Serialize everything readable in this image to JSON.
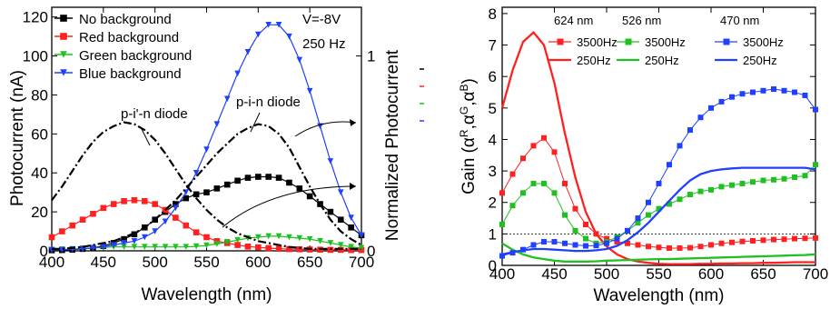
{
  "chart_data": [
    {
      "type": "line",
      "xlabel": "Wavelength (nm)",
      "ylabel": "Photocurrent (nA)",
      "y2label": "Normalized Photocurrent",
      "xlim": [
        400,
        700
      ],
      "ylim": [
        0,
        125
      ],
      "y2lim": [
        0,
        1.25
      ],
      "x_ticks": [
        "400",
        "450",
        "500",
        "550",
        "600",
        "650",
        "700"
      ],
      "y_ticks": [
        "0",
        "20",
        "40",
        "60",
        "80",
        "100",
        "120"
      ],
      "y2_ticks": [
        "0",
        "1"
      ],
      "condition_text": [
        "V=-8V",
        "250 Hz"
      ],
      "grid": false,
      "legend_position": "top-left",
      "annotations": [
        "p-i'-n diode",
        "p-i-n diode"
      ],
      "series": [
        {
          "name": "No background",
          "color": "#000000",
          "marker": "square",
          "x": [
            400,
            410,
            420,
            430,
            440,
            450,
            460,
            470,
            480,
            490,
            500,
            510,
            520,
            530,
            540,
            550,
            560,
            570,
            580,
            590,
            600,
            610,
            620,
            630,
            640,
            650,
            660,
            670,
            680,
            690,
            700
          ],
          "y": [
            0.3,
            0.4,
            0.6,
            1,
            1.5,
            2.5,
            4,
            6,
            8.5,
            12,
            16,
            20,
            24,
            27,
            29,
            30,
            32,
            34,
            36,
            37.5,
            38,
            38,
            37.5,
            35,
            32,
            28,
            24,
            20,
            16,
            12,
            8
          ]
        },
        {
          "name": "Red background",
          "color": "#ff2020",
          "marker": "square",
          "x": [
            400,
            410,
            420,
            430,
            440,
            450,
            460,
            470,
            480,
            490,
            500,
            510,
            520,
            530,
            540,
            550,
            560,
            570,
            580,
            590,
            600,
            610,
            620,
            630,
            640,
            650,
            660,
            670,
            680,
            690,
            700
          ],
          "y": [
            7,
            10,
            13,
            16,
            19,
            22,
            24,
            25.5,
            26,
            25.5,
            24,
            21,
            17,
            13,
            9.5,
            7,
            5,
            4,
            3,
            2.2,
            1.8,
            1.4,
            1.1,
            0.9,
            0.8,
            0.7,
            0.6,
            0.5,
            0.5,
            0.4,
            0.4
          ]
        },
        {
          "name": "Green background",
          "color": "#20c020",
          "marker": "triangle-down",
          "x": [
            400,
            410,
            420,
            430,
            440,
            450,
            460,
            470,
            480,
            490,
            500,
            510,
            520,
            530,
            540,
            550,
            560,
            570,
            580,
            590,
            600,
            610,
            620,
            630,
            640,
            650,
            660,
            670,
            680,
            690,
            700
          ],
          "y": [
            0.5,
            0.7,
            0.9,
            1.2,
            1.5,
            1.8,
            2,
            2,
            2,
            2,
            2,
            2,
            2,
            2,
            2.3,
            2.8,
            3.5,
            4.5,
            5.5,
            6.5,
            7,
            7.5,
            7.5,
            7,
            6.5,
            6,
            5,
            4,
            3,
            2,
            1.5
          ]
        },
        {
          "name": "Blue background",
          "color": "#2040ff",
          "marker": "triangle-down",
          "x": [
            400,
            410,
            420,
            430,
            440,
            450,
            460,
            470,
            480,
            490,
            500,
            510,
            520,
            530,
            540,
            550,
            560,
            570,
            580,
            590,
            600,
            610,
            620,
            630,
            640,
            650,
            660,
            670,
            680,
            690,
            700
          ],
          "y": [
            0.5,
            0.6,
            0.8,
            1,
            1.5,
            2,
            3,
            4,
            5,
            7,
            10,
            15,
            22,
            30,
            40,
            52,
            65,
            78,
            91,
            102,
            111,
            116,
            116,
            110,
            98,
            82,
            64,
            46,
            30,
            17,
            8
          ]
        },
        {
          "name": "p-i'-n diode",
          "color": "#000000",
          "style": "dash-dot",
          "axis": "right",
          "x": [
            400,
            410,
            420,
            430,
            440,
            450,
            460,
            470,
            480,
            490,
            500,
            510,
            520,
            530,
            540,
            550,
            560,
            570,
            580,
            590,
            600,
            610,
            620,
            630,
            640,
            650,
            660,
            670,
            680,
            690,
            700
          ],
          "y": [
            0.26,
            0.33,
            0.41,
            0.49,
            0.56,
            0.61,
            0.64,
            0.66,
            0.65,
            0.62,
            0.57,
            0.5,
            0.42,
            0.34,
            0.27,
            0.21,
            0.16,
            0.12,
            0.09,
            0.07,
            0.05,
            0.04,
            0.03,
            0.02,
            0.015,
            0.01,
            0.01,
            0.01,
            0.01,
            0.01,
            0.01
          ]
        },
        {
          "name": "p-i-n diode",
          "color": "#000000",
          "style": "dash-dot",
          "axis": "right",
          "x": [
            400,
            410,
            420,
            430,
            440,
            450,
            460,
            470,
            480,
            490,
            500,
            510,
            520,
            530,
            540,
            550,
            560,
            570,
            580,
            590,
            600,
            610,
            620,
            630,
            640,
            650,
            660,
            670,
            680,
            690,
            700
          ],
          "y": [
            0.01,
            0.01,
            0.015,
            0.02,
            0.03,
            0.04,
            0.05,
            0.07,
            0.09,
            0.12,
            0.16,
            0.21,
            0.26,
            0.32,
            0.38,
            0.44,
            0.5,
            0.55,
            0.6,
            0.63,
            0.65,
            0.64,
            0.6,
            0.53,
            0.43,
            0.33,
            0.24,
            0.16,
            0.1,
            0.06,
            0.03
          ]
        }
      ]
    },
    {
      "type": "line",
      "xlabel": "Wavelength (nm)",
      "ylabel": "Gain (α^R,α^G,α^B)",
      "ylabel_base": "Gain (",
      "ylabel_end": ")",
      "xlim": [
        400,
        700
      ],
      "ylim": [
        0,
        8.2
      ],
      "x_ticks": [
        "400",
        "450",
        "500",
        "550",
        "600",
        "650",
        "700"
      ],
      "y_ticks": [
        "0",
        "1",
        "2",
        "3",
        "4",
        "5",
        "6",
        "7",
        "8"
      ],
      "reference_line": 1,
      "grid": false,
      "legend_position": "top",
      "legend_groups": [
        {
          "header": "624 nm",
          "color": "#ff2020"
        },
        {
          "header": "526 nm",
          "color": "#20c020"
        },
        {
          "header": "470 nm",
          "color": "#2040ff"
        }
      ],
      "series": [
        {
          "name": "3500Hz",
          "group": "624 nm",
          "color": "#ff2020",
          "marker": "square",
          "x": [
            400,
            410,
            420,
            430,
            440,
            450,
            460,
            470,
            480,
            490,
            500,
            510,
            520,
            530,
            540,
            550,
            560,
            570,
            580,
            590,
            600,
            610,
            620,
            630,
            640,
            650,
            660,
            670,
            680,
            690,
            700
          ],
          "y": [
            2.3,
            2.9,
            3.4,
            3.8,
            4.05,
            3.6,
            2.6,
            1.8,
            1.3,
            1,
            0.85,
            0.75,
            0.7,
            0.65,
            0.6,
            0.57,
            0.55,
            0.55,
            0.56,
            0.6,
            0.65,
            0.7,
            0.73,
            0.76,
            0.78,
            0.8,
            0.82,
            0.83,
            0.85,
            0.86,
            0.87
          ]
        },
        {
          "name": "250Hz",
          "group": "624 nm",
          "color": "#ff2020",
          "marker": "none",
          "x": [
            400,
            410,
            420,
            430,
            440,
            450,
            460,
            470,
            480,
            490,
            500,
            510,
            520,
            530,
            540,
            550,
            560,
            570,
            580,
            590,
            600,
            610,
            620,
            630,
            640,
            650,
            660,
            670,
            680,
            690,
            700
          ],
          "y": [
            5,
            6.2,
            7.1,
            7.4,
            7,
            5.8,
            4.2,
            2.8,
            1.7,
            1,
            0.6,
            0.35,
            0.2,
            0.12,
            0.08,
            0.05,
            0.04,
            0.04,
            0.04,
            0.05,
            0.05,
            0.06,
            0.06,
            0.07,
            0.07,
            0.08,
            0.08,
            0.09,
            0.1,
            0.1,
            0.1
          ]
        },
        {
          "name": "3500Hz",
          "group": "526 nm",
          "color": "#20c020",
          "marker": "square",
          "x": [
            400,
            410,
            420,
            430,
            440,
            450,
            460,
            470,
            480,
            490,
            500,
            510,
            520,
            530,
            540,
            550,
            560,
            570,
            580,
            590,
            600,
            610,
            620,
            630,
            640,
            650,
            660,
            670,
            680,
            690,
            700
          ],
          "y": [
            1.3,
            1.9,
            2.3,
            2.6,
            2.6,
            2.3,
            1.6,
            1.1,
            0.85,
            0.7,
            0.75,
            0.9,
            1.1,
            1.35,
            1.6,
            1.8,
            1.95,
            2.1,
            2.25,
            2.35,
            2.4,
            2.5,
            2.55,
            2.6,
            2.65,
            2.7,
            2.72,
            2.75,
            2.8,
            2.85,
            3.2
          ]
        },
        {
          "name": "250Hz",
          "group": "526 nm",
          "color": "#20c020",
          "marker": "none",
          "x": [
            400,
            410,
            420,
            430,
            440,
            450,
            460,
            470,
            480,
            490,
            500,
            510,
            520,
            530,
            540,
            550,
            560,
            570,
            580,
            590,
            600,
            610,
            620,
            630,
            640,
            650,
            660,
            670,
            680,
            690,
            700
          ],
          "y": [
            0.7,
            0.5,
            0.35,
            0.25,
            0.2,
            0.15,
            0.12,
            0.12,
            0.12,
            0.13,
            0.15,
            0.16,
            0.17,
            0.18,
            0.19,
            0.2,
            0.2,
            0.21,
            0.22,
            0.23,
            0.24,
            0.25,
            0.26,
            0.27,
            0.28,
            0.29,
            0.3,
            0.31,
            0.32,
            0.33,
            0.35
          ]
        },
        {
          "name": "3500Hz",
          "group": "470 nm",
          "color": "#2040ff",
          "marker": "square",
          "x": [
            400,
            410,
            420,
            430,
            440,
            450,
            460,
            470,
            480,
            490,
            500,
            510,
            520,
            530,
            540,
            550,
            560,
            570,
            580,
            590,
            600,
            610,
            620,
            630,
            640,
            650,
            660,
            670,
            680,
            690,
            700
          ],
          "y": [
            0.3,
            0.4,
            0.5,
            0.65,
            0.75,
            0.75,
            0.7,
            0.65,
            0.62,
            0.63,
            0.7,
            0.85,
            1.1,
            1.5,
            2,
            2.6,
            3.2,
            3.8,
            4.3,
            4.7,
            5,
            5.2,
            5.35,
            5.45,
            5.5,
            5.55,
            5.6,
            5.55,
            5.5,
            5.4,
            4.95
          ]
        },
        {
          "name": "250Hz",
          "group": "470 nm",
          "color": "#2040ff",
          "marker": "none",
          "x": [
            400,
            410,
            420,
            430,
            440,
            450,
            460,
            470,
            480,
            490,
            500,
            510,
            520,
            530,
            540,
            550,
            560,
            570,
            580,
            590,
            600,
            610,
            620,
            630,
            640,
            650,
            660,
            670,
            680,
            690,
            700
          ],
          "y": [
            0.35,
            0.42,
            0.48,
            0.52,
            0.52,
            0.5,
            0.48,
            0.46,
            0.46,
            0.48,
            0.52,
            0.62,
            0.8,
            1.05,
            1.35,
            1.7,
            2.05,
            2.4,
            2.7,
            2.9,
            3,
            3.05,
            3.08,
            3.1,
            3.1,
            3.1,
            3.1,
            3.1,
            3.1,
            3.1,
            3.05
          ]
        }
      ]
    }
  ]
}
